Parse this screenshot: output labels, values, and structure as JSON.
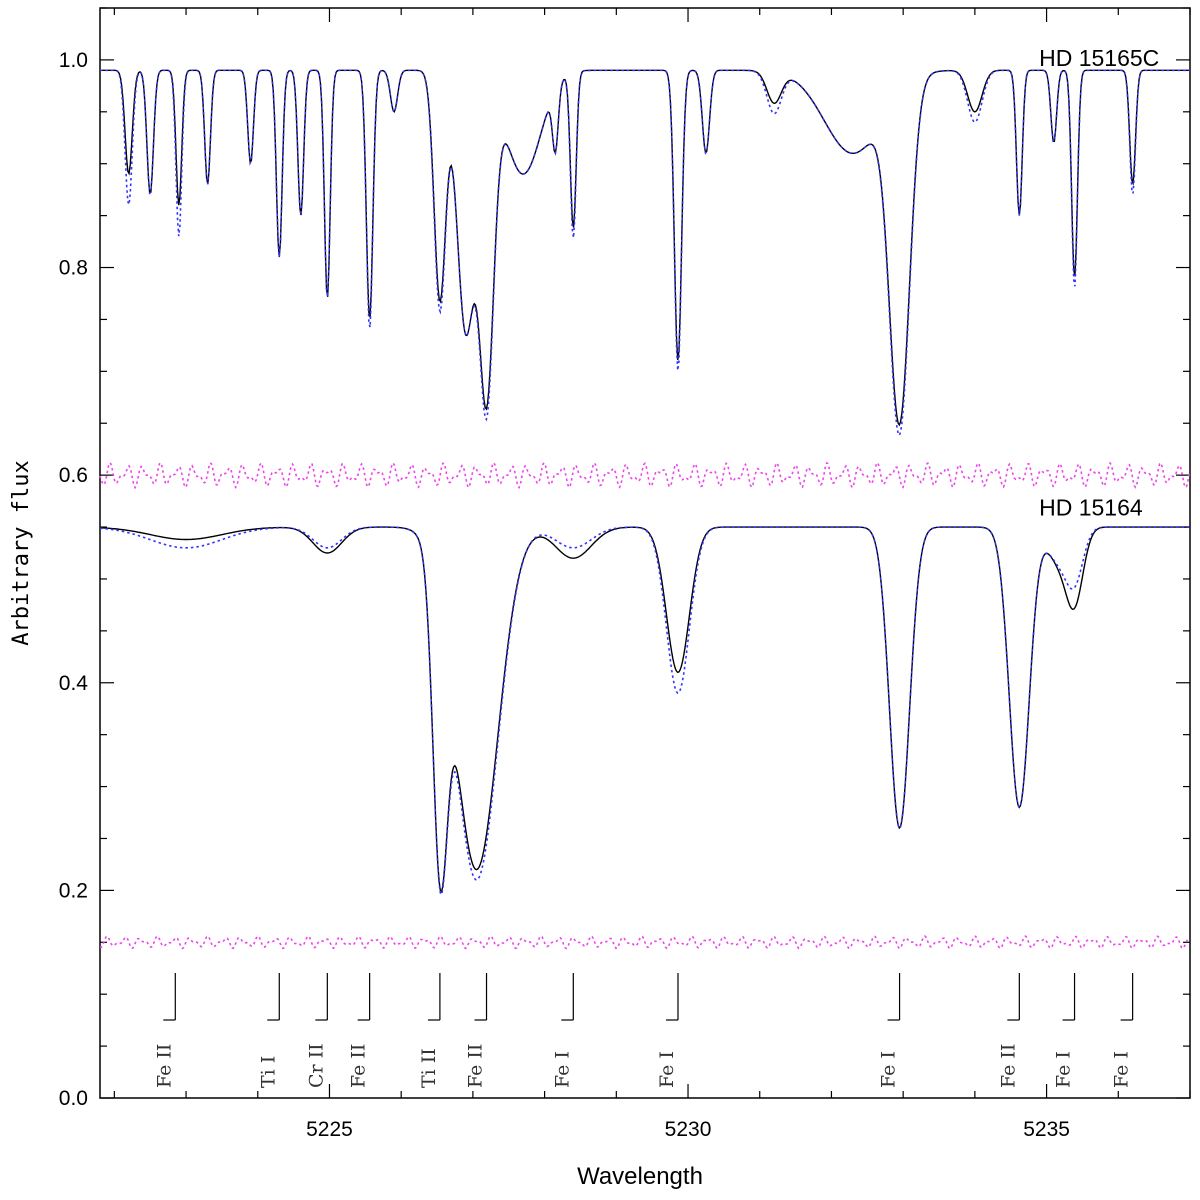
{
  "chart_data": {
    "type": "line",
    "xlabel": "Wavelength",
    "ylabel": "Arbitrary flux",
    "xlim": [
      5221.8,
      5237.0
    ],
    "ylim": [
      0.0,
      1.05
    ],
    "x_ticks": [
      5225,
      5230,
      5235
    ],
    "y_ticks": [
      "0.0",
      "0.2",
      "0.4",
      "0.6",
      "0.8",
      "1.0"
    ],
    "annotations": [
      {
        "text": "HD 15165C",
        "x": 5235.9,
        "y": 1.0
      },
      {
        "text": "HD 15164",
        "x": 5235.9,
        "y": 0.567
      }
    ],
    "line_ids": [
      {
        "text": "Fe II",
        "x": 5222.85
      },
      {
        "text": "Ti I",
        "x": 5224.3
      },
      {
        "text": "Cr II",
        "x": 5224.97
      },
      {
        "text": "Fe II",
        "x": 5225.56
      },
      {
        "text": "Ti II",
        "x": 5226.54
      },
      {
        "text": "Fe II",
        "x": 5227.19
      },
      {
        "text": "Fe I",
        "x": 5228.4
      },
      {
        "text": "Fe I",
        "x": 5229.86
      },
      {
        "text": "Fe I",
        "x": 5232.95
      },
      {
        "text": "Fe II",
        "x": 5234.62
      },
      {
        "text": "Fe I",
        "x": 5235.39
      },
      {
        "text": "Fe I",
        "x": 5236.2
      }
    ],
    "series": [
      {
        "role": "observed",
        "star": "HD 15165C",
        "color": "#000000",
        "style": "solid",
        "continuum": 0.99,
        "lines": [
          [
            5222.2,
            0.1,
            0.05
          ],
          [
            5222.5,
            0.12,
            0.045
          ],
          [
            5222.9,
            0.13,
            0.04
          ],
          [
            5223.3,
            0.11,
            0.04
          ],
          [
            5223.9,
            0.09,
            0.04
          ],
          [
            5224.3,
            0.18,
            0.04
          ],
          [
            5224.6,
            0.14,
            0.04
          ],
          [
            5224.97,
            0.22,
            0.04
          ],
          [
            5225.56,
            0.24,
            0.045
          ],
          [
            5225.9,
            0.04,
            0.05
          ],
          [
            5226.54,
            0.22,
            0.08
          ],
          [
            5226.9,
            0.25,
            0.12
          ],
          [
            5227.19,
            0.3,
            0.1
          ],
          [
            5227.7,
            0.1,
            0.25
          ],
          [
            5228.15,
            0.06,
            0.04
          ],
          [
            5228.4,
            0.15,
            0.04
          ],
          [
            5229.86,
            0.28,
            0.05
          ],
          [
            5230.25,
            0.08,
            0.05
          ],
          [
            5231.2,
            0.03,
            0.1
          ],
          [
            5232.95,
            0.32,
            0.14
          ],
          [
            5232.3,
            0.08,
            0.4
          ],
          [
            5234.0,
            0.04,
            0.1
          ],
          [
            5234.62,
            0.14,
            0.04
          ],
          [
            5235.1,
            0.07,
            0.04
          ],
          [
            5235.39,
            0.2,
            0.04
          ],
          [
            5236.2,
            0.11,
            0.04
          ]
        ]
      },
      {
        "role": "synthetic",
        "star": "HD 15165C",
        "color": "#3333ff",
        "style": "dotted",
        "continuum": 0.99,
        "lines": [
          [
            5222.2,
            0.13,
            0.05
          ],
          [
            5222.5,
            0.12,
            0.045
          ],
          [
            5222.9,
            0.16,
            0.04
          ],
          [
            5223.3,
            0.11,
            0.04
          ],
          [
            5223.9,
            0.09,
            0.04
          ],
          [
            5224.3,
            0.18,
            0.04
          ],
          [
            5224.6,
            0.14,
            0.04
          ],
          [
            5224.97,
            0.22,
            0.04
          ],
          [
            5225.56,
            0.25,
            0.045
          ],
          [
            5225.9,
            0.04,
            0.05
          ],
          [
            5226.54,
            0.23,
            0.08
          ],
          [
            5226.9,
            0.25,
            0.12
          ],
          [
            5227.19,
            0.31,
            0.1
          ],
          [
            5227.7,
            0.1,
            0.25
          ],
          [
            5228.15,
            0.06,
            0.04
          ],
          [
            5228.4,
            0.16,
            0.04
          ],
          [
            5229.86,
            0.29,
            0.05
          ],
          [
            5230.25,
            0.08,
            0.05
          ],
          [
            5231.2,
            0.04,
            0.1
          ],
          [
            5232.95,
            0.33,
            0.14
          ],
          [
            5232.3,
            0.08,
            0.4
          ],
          [
            5234.0,
            0.05,
            0.1
          ],
          [
            5234.62,
            0.14,
            0.04
          ],
          [
            5235.1,
            0.07,
            0.04
          ],
          [
            5235.39,
            0.21,
            0.04
          ],
          [
            5236.2,
            0.12,
            0.04
          ]
        ]
      },
      {
        "role": "observed",
        "star": "HD 15164",
        "color": "#000000",
        "style": "solid",
        "continuum": 0.55,
        "lines": [
          [
            5223.0,
            0.012,
            0.5
          ],
          [
            5224.97,
            0.025,
            0.2
          ],
          [
            5226.54,
            0.27,
            0.1
          ],
          [
            5227.05,
            0.33,
            0.3
          ],
          [
            5228.4,
            0.03,
            0.25
          ],
          [
            5229.86,
            0.14,
            0.16
          ],
          [
            5232.95,
            0.29,
            0.14
          ],
          [
            5234.62,
            0.27,
            0.14
          ],
          [
            5235.39,
            0.07,
            0.12
          ],
          [
            5235.15,
            0.03,
            0.15
          ]
        ]
      },
      {
        "role": "synthetic",
        "star": "HD 15164",
        "color": "#3333ff",
        "style": "dotted",
        "continuum": 0.55,
        "lines": [
          [
            5223.0,
            0.02,
            0.5
          ],
          [
            5224.97,
            0.02,
            0.2
          ],
          [
            5226.54,
            0.27,
            0.1
          ],
          [
            5227.05,
            0.34,
            0.3
          ],
          [
            5228.4,
            0.02,
            0.25
          ],
          [
            5229.86,
            0.16,
            0.16
          ],
          [
            5232.95,
            0.29,
            0.14
          ],
          [
            5234.62,
            0.27,
            0.14
          ],
          [
            5235.39,
            0.05,
            0.12
          ],
          [
            5235.15,
            0.03,
            0.15
          ]
        ]
      },
      {
        "role": "residual",
        "star": "HD 15165C",
        "color": "#ee44ee",
        "style": "dotted",
        "baseline": 0.6,
        "amplitude": 0.012
      },
      {
        "role": "residual",
        "star": "HD 15164",
        "color": "#ee44ee",
        "style": "dotted",
        "baseline": 0.15,
        "amplitude": 0.006
      }
    ]
  }
}
